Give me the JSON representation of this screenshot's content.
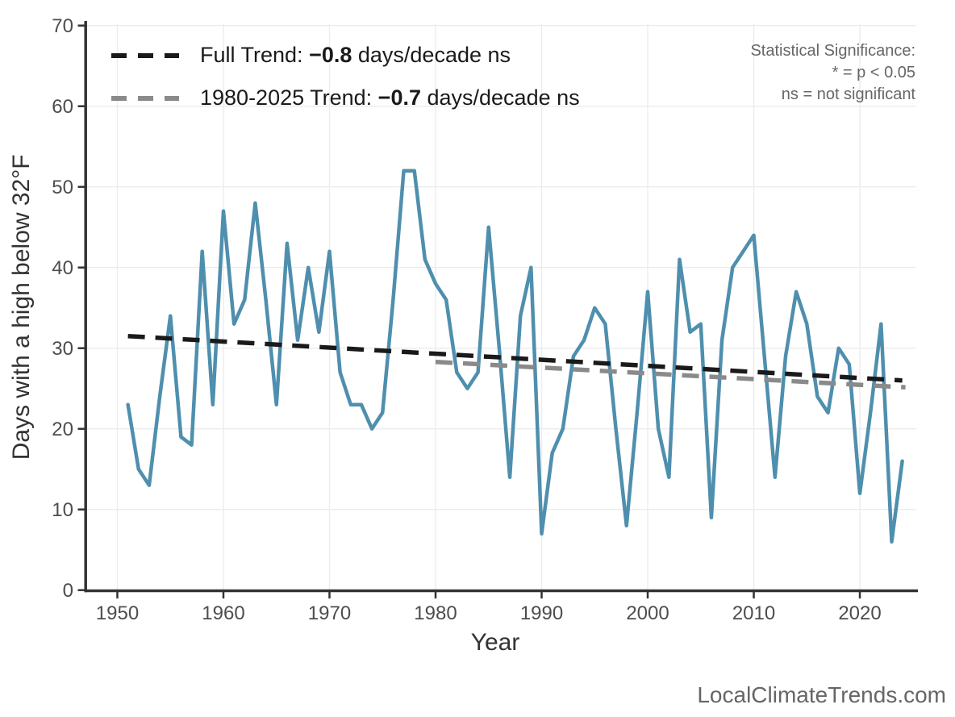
{
  "chart_data": {
    "type": "line",
    "title": "",
    "xlabel": "Year",
    "ylabel": "Days with a high below 32°F",
    "x_ticks": [
      1950,
      1960,
      1970,
      1980,
      1990,
      2000,
      2010,
      2020
    ],
    "y_ticks": [
      0,
      10,
      20,
      30,
      40,
      50,
      60,
      70
    ],
    "xlim": [
      1947.15,
      2025.32
    ],
    "ylim": [
      0,
      70.17
    ],
    "grid": true,
    "grid_color": "#ececec",
    "axis_color": "#333333",
    "legend_position": "top-left",
    "series": [
      {
        "name": "Days with a high below 32°F (annual)",
        "color": "#4f8fae",
        "style": "solid",
        "x": [
          1951,
          1952,
          1953,
          1954,
          1955,
          1956,
          1957,
          1958,
          1959,
          1960,
          1961,
          1962,
          1963,
          1964,
          1965,
          1966,
          1967,
          1968,
          1969,
          1970,
          1971,
          1972,
          1973,
          1974,
          1975,
          1976,
          1977,
          1978,
          1979,
          1980,
          1981,
          1982,
          1983,
          1984,
          1985,
          1986,
          1987,
          1988,
          1989,
          1990,
          1991,
          1992,
          1993,
          1994,
          1995,
          1996,
          1997,
          1998,
          1999,
          2000,
          2001,
          2002,
          2003,
          2004,
          2005,
          2006,
          2007,
          2008,
          2009,
          2010,
          2011,
          2012,
          2013,
          2014,
          2015,
          2016,
          2017,
          2018,
          2019,
          2020,
          2021,
          2022,
          2023,
          2024
        ],
        "values": [
          23,
          15,
          13,
          24,
          34,
          19,
          18,
          42,
          23,
          47,
          33,
          36,
          48,
          36,
          23,
          43,
          31,
          40,
          32,
          42,
          27,
          23,
          23,
          20,
          22,
          36,
          52,
          52,
          41,
          38,
          36,
          27,
          25,
          27,
          45,
          30,
          14,
          34,
          40,
          7,
          17,
          20,
          29,
          31,
          35,
          33,
          20,
          8,
          22,
          37,
          20,
          14,
          41,
          32,
          33,
          9,
          31,
          40,
          42,
          44,
          29,
          14,
          29,
          37,
          33,
          24,
          22,
          30,
          28,
          12,
          22,
          33,
          6,
          16
        ]
      },
      {
        "name": "Full Trend",
        "color": "#1a1a1a",
        "style": "dashed",
        "x": [
          1951,
          2024
        ],
        "values": [
          31.5,
          26.0
        ],
        "slope_days_per_decade": -0.8,
        "significance": "ns"
      },
      {
        "name": "1980-2025 Trend",
        "color": "#8a8a8a",
        "style": "dashed",
        "x": [
          1980,
          2024.3
        ],
        "values": [
          28.3,
          25.15
        ],
        "slope_days_per_decade": -0.7,
        "significance": "ns"
      }
    ]
  },
  "legend": {
    "rows": [
      {
        "swatch_color": "#1a1a1a",
        "prefix": "Full Trend: ",
        "value": "−0.8",
        "suffix": " days/decade ns"
      },
      {
        "swatch_color": "#8a8a8a",
        "prefix": "1980-2025 Trend: ",
        "value": "−0.7",
        "suffix": " days/decade ns"
      }
    ]
  },
  "significance_note": {
    "line1": "Statistical Significance:",
    "line2": "* = p < 0.05",
    "line3": "ns = not significant"
  },
  "watermark": "LocalClimateTrends.com"
}
